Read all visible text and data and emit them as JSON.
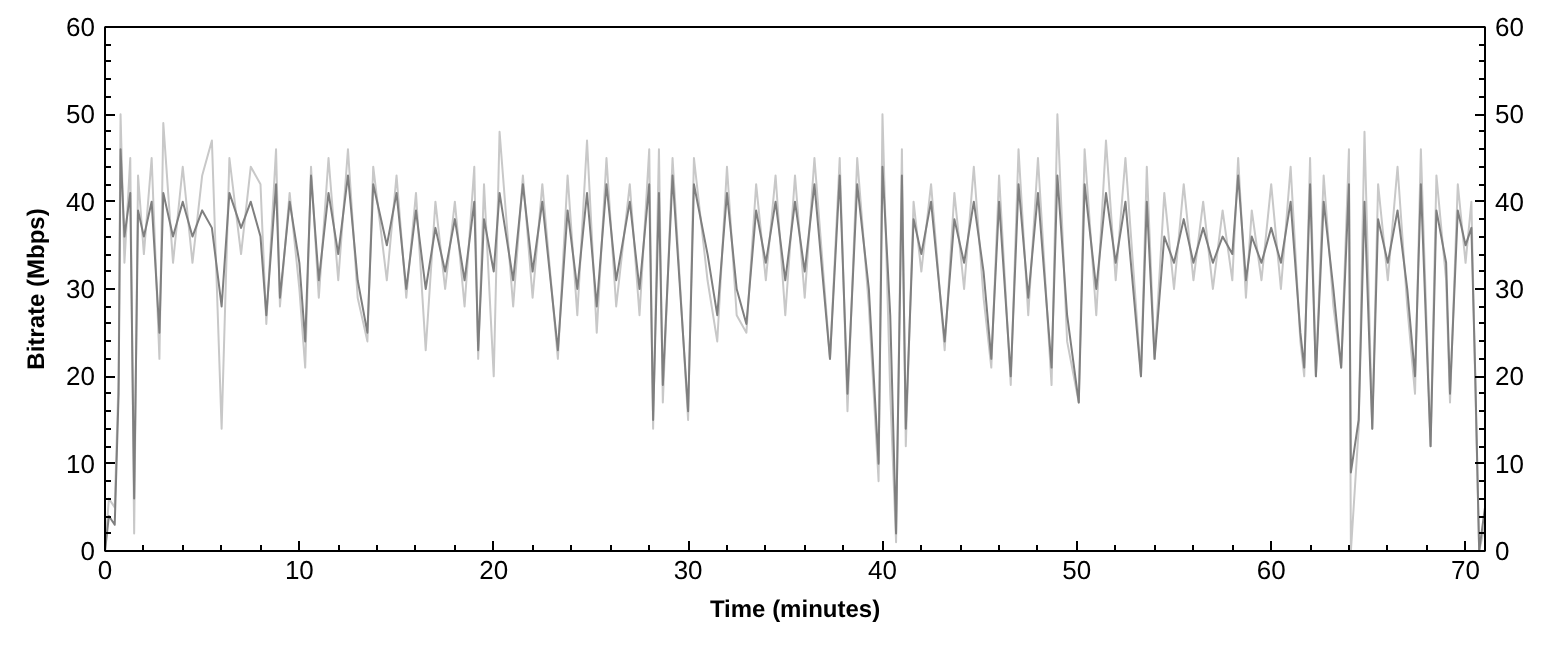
{
  "chart_data": {
    "type": "line",
    "xlabel": "Time (minutes)",
    "ylabel": "Bitrate (Mbps)",
    "xlim": [
      0,
      71
    ],
    "xticks": [
      0,
      10,
      20,
      30,
      40,
      50,
      60,
      70
    ],
    "ylim": [
      0,
      60
    ],
    "yticks": [
      0,
      10,
      20,
      30,
      40,
      50,
      60
    ],
    "y2lim": [
      0,
      60
    ],
    "y2ticks": [
      0,
      10,
      20,
      30,
      40,
      50,
      60
    ],
    "grid": false,
    "x": [
      0,
      0.2,
      0.5,
      0.7,
      0.8,
      1.0,
      1.3,
      1.5,
      1.7,
      2.0,
      2.4,
      2.8,
      3.0,
      3.5,
      4.0,
      4.5,
      5.0,
      5.5,
      6.0,
      6.4,
      7.0,
      7.5,
      8.0,
      8.3,
      8.8,
      9.0,
      9.5,
      10.0,
      10.3,
      10.6,
      11.0,
      11.5,
      12.0,
      12.5,
      13.0,
      13.5,
      13.8,
      14.5,
      15.0,
      15.5,
      16.0,
      16.5,
      17.0,
      17.5,
      18.0,
      18.5,
      19.0,
      19.2,
      19.5,
      20.0,
      20.3,
      21.0,
      21.5,
      22.0,
      22.5,
      23.3,
      23.8,
      24.3,
      24.8,
      25.3,
      25.8,
      26.3,
      27.0,
      27.5,
      28.0,
      28.2,
      28.5,
      28.7,
      29.2,
      30.0,
      30.3,
      31.0,
      31.5,
      32.0,
      32.5,
      33.0,
      33.5,
      34.0,
      34.5,
      35.0,
      35.5,
      36.0,
      36.5,
      37.3,
      37.8,
      38.2,
      38.7,
      39.3,
      39.8,
      40.0,
      40.4,
      40.7,
      41.0,
      41.2,
      41.6,
      42.0,
      42.5,
      43.2,
      43.7,
      44.2,
      44.7,
      45.2,
      45.6,
      46.0,
      46.6,
      47.0,
      47.5,
      48.0,
      48.7,
      49.0,
      49.5,
      50.1,
      50.4,
      51.0,
      51.5,
      52.0,
      52.5,
      53.3,
      53.6,
      54.0,
      54.5,
      55.0,
      55.5,
      56.0,
      56.5,
      57.0,
      57.5,
      58.0,
      58.3,
      58.7,
      59.0,
      59.5,
      60.0,
      60.5,
      61.0,
      61.5,
      61.7,
      62.0,
      62.3,
      62.7,
      63.2,
      63.6,
      64.0,
      64.1,
      64.5,
      64.8,
      65.2,
      65.5,
      66.0,
      66.5,
      67.0,
      67.4,
      67.7,
      68.2,
      68.5,
      69.0,
      69.2,
      69.6,
      70.0,
      70.3,
      70.5,
      70.7,
      71.0
    ],
    "series": [
      {
        "color": "#c8c8c8",
        "values": [
          0,
          6,
          5,
          20,
          50,
          33,
          45,
          2,
          43,
          34,
          45,
          22,
          49,
          33,
          44,
          33,
          43,
          47,
          14,
          45,
          34,
          44,
          42,
          26,
          46,
          28,
          41,
          30,
          21,
          44,
          29,
          45,
          31,
          46,
          29,
          24,
          44,
          31,
          43,
          29,
          41,
          23,
          40,
          30,
          40,
          28,
          44,
          22,
          42,
          20,
          48,
          28,
          43,
          29,
          42,
          22,
          43,
          27,
          47,
          25,
          45,
          28,
          42,
          27,
          46,
          14,
          46,
          17,
          45,
          15,
          45,
          31,
          24,
          44,
          27,
          25,
          42,
          31,
          43,
          27,
          43,
          29,
          45,
          22,
          45,
          16,
          45,
          28,
          8,
          50,
          18,
          1,
          46,
          12,
          40,
          32,
          42,
          23,
          41,
          30,
          44,
          29,
          21,
          43,
          19,
          46,
          27,
          45,
          19,
          50,
          24,
          17,
          46,
          27,
          47,
          31,
          45,
          20,
          44,
          22,
          41,
          30,
          42,
          31,
          40,
          30,
          39,
          31,
          45,
          29,
          39,
          31,
          42,
          30,
          44,
          24,
          20,
          45,
          20,
          43,
          28,
          21,
          46,
          0,
          14,
          48,
          14,
          42,
          31,
          44,
          28,
          18,
          46,
          12,
          43,
          31,
          17,
          42,
          33,
          40,
          19,
          0,
          3
        ]
      },
      {
        "color": "#7f7f7f",
        "values": [
          0,
          4,
          3,
          18,
          46,
          36,
          41,
          6,
          39,
          36,
          40,
          25,
          41,
          36,
          40,
          36,
          39,
          37,
          28,
          41,
          37,
          40,
          36,
          27,
          42,
          29,
          40,
          33,
          24,
          43,
          31,
          41,
          34,
          43,
          31,
          25,
          42,
          35,
          41,
          30,
          39,
          30,
          37,
          32,
          38,
          31,
          40,
          23,
          38,
          32,
          41,
          31,
          42,
          32,
          40,
          23,
          39,
          30,
          41,
          28,
          42,
          31,
          40,
          30,
          42,
          15,
          41,
          19,
          43,
          16,
          42,
          34,
          27,
          41,
          30,
          26,
          39,
          33,
          40,
          31,
          40,
          32,
          42,
          22,
          43,
          18,
          42,
          30,
          10,
          44,
          27,
          2,
          43,
          14,
          38,
          34,
          40,
          24,
          38,
          33,
          40,
          32,
          22,
          40,
          20,
          42,
          29,
          41,
          21,
          43,
          27,
          17,
          42,
          30,
          41,
          33,
          40,
          20,
          40,
          22,
          36,
          33,
          38,
          33,
          37,
          33,
          36,
          34,
          43,
          31,
          36,
          33,
          37,
          33,
          40,
          25,
          21,
          42,
          20,
          40,
          30,
          21,
          42,
          9,
          15,
          40,
          14,
          38,
          33,
          39,
          30,
          20,
          42,
          12,
          39,
          33,
          18,
          39,
          35,
          37,
          20,
          0,
          5
        ]
      }
    ]
  }
}
